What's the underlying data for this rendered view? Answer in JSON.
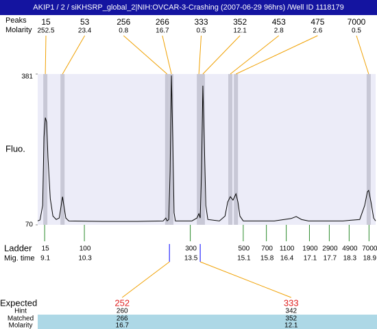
{
  "header": {
    "title": "AKIP1 / 2 / siKHSRP_global_2|NIH:OVCAR-3-Crashing (2007-06-29 96hrs) /Well ID 1118179"
  },
  "chart_data": {
    "type": "line",
    "ylabel": "Fluo.",
    "xlim": [
      8.89,
      19.1
    ],
    "ylim": [
      70,
      381
    ],
    "yticks": [
      70,
      381
    ],
    "x": [
      8.89,
      8.96,
      9.04,
      9.08,
      9.12,
      9.16,
      9.2,
      9.27,
      9.35,
      9.45,
      9.54,
      9.6,
      9.64,
      9.68,
      9.74,
      9.83,
      10.86,
      11.9,
      12.68,
      12.76,
      12.8,
      12.85,
      12.89,
      12.93,
      12.97,
      13.01,
      13.05,
      13.55,
      13.7,
      13.76,
      13.8,
      13.84,
      13.88,
      13.92,
      13.97,
      14.03,
      14.38,
      14.55,
      14.63,
      14.71,
      14.79,
      14.88,
      14.94,
      15.0,
      15.1,
      16.04,
      16.55,
      16.7,
      16.86,
      17.07,
      18.11,
      18.62,
      18.77,
      18.85,
      18.89,
      18.96,
      19.04,
      19.1
    ],
    "series": [
      {
        "color": "#000000",
        "values": [
          78,
          80,
          110,
          251,
          291,
          282,
          209,
          124,
          88,
          81,
          84,
          110,
          128,
          110,
          84,
          78,
          77,
          77,
          78,
          84,
          78,
          81,
          180,
          378,
          251,
          95,
          78,
          78,
          84,
          93,
          84,
          180,
          357,
          251,
          110,
          81,
          78,
          88,
          117,
          128,
          121,
          134,
          117,
          88,
          78,
          78,
          83,
          87,
          81,
          78,
          78,
          81,
          110,
          138,
          141,
          117,
          84,
          78
        ]
      }
    ]
  },
  "peaks": {
    "size_label": "Peaks",
    "molarity_label": "Molarity",
    "items": [
      {
        "size": 15,
        "molarity": 252.5,
        "time": 9.12
      },
      {
        "size": 53,
        "molarity": 23.4,
        "time": 9.64
      },
      {
        "size": 256,
        "molarity": 0.8,
        "time": 12.8
      },
      {
        "size": 266,
        "molarity": 16.7,
        "time": 12.93
      },
      {
        "size": 333,
        "molarity": 0.5,
        "time": 13.76
      },
      {
        "size": 352,
        "molarity": 12.1,
        "time": 13.88
      },
      {
        "size": 453,
        "molarity": 2.8,
        "time": 14.71
      },
      {
        "size": 475,
        "molarity": 2.6,
        "time": 14.88
      },
      {
        "size": 7000,
        "molarity": 0.5,
        "time": 18.89
      }
    ]
  },
  "ladder": {
    "label": "Ladder",
    "time_label": "Mig. time",
    "items": [
      {
        "size": 15,
        "time": 9.1
      },
      {
        "size": 100,
        "time": 10.3
      },
      {
        "size": 300,
        "time": 13.5
      },
      {
        "size": 500,
        "time": 15.1
      },
      {
        "size": 700,
        "time": 15.8
      },
      {
        "size": 1100,
        "time": 16.4
      },
      {
        "size": 1900,
        "time": 17.1
      },
      {
        "size": 2900,
        "time": 17.7
      },
      {
        "size": 4900,
        "time": 18.3
      },
      {
        "size": 7000,
        "time": 18.9
      }
    ]
  },
  "expected": {
    "label": "Expected",
    "hint_label": "Hint",
    "matched_label": "Matched",
    "molarity_label": "Molarity",
    "items": [
      {
        "expected": 252,
        "hint": 260,
        "matched": 266,
        "molarity": 16.7,
        "time": 12.87
      },
      {
        "expected": 333,
        "hint": 342,
        "matched": 352,
        "molarity": 12.1,
        "time": 13.8
      }
    ]
  }
}
